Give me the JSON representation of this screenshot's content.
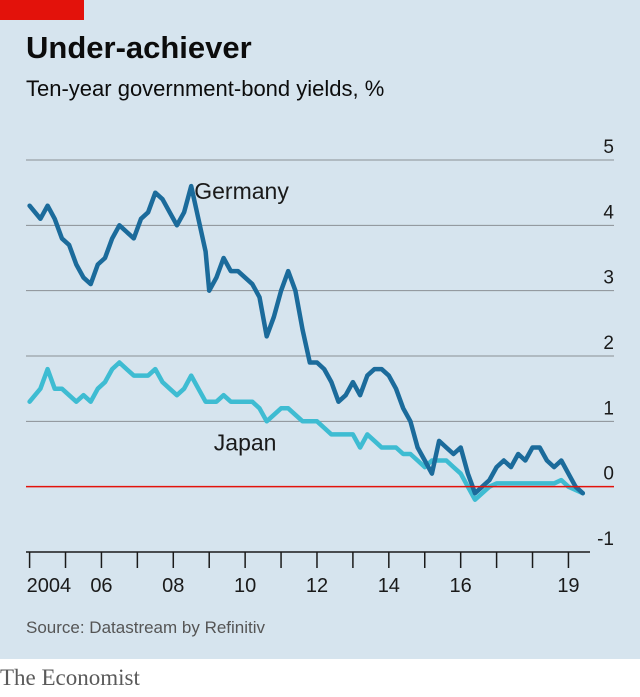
{
  "header": {
    "title": "Under-achiever",
    "subtitle": "Ten-year government-bond yields, %"
  },
  "chart_data": {
    "type": "line",
    "ylim": [
      -1,
      5
    ],
    "xlim": [
      2003.9,
      2019.6
    ],
    "y_ticks": [
      5,
      4,
      3,
      2,
      1,
      0,
      -1
    ],
    "x_ticks": [
      {
        "value": 2004,
        "label": "2004"
      },
      {
        "value": 2006,
        "label": "06"
      },
      {
        "value": 2008,
        "label": "08"
      },
      {
        "value": 2010,
        "label": "10"
      },
      {
        "value": 2012,
        "label": "12"
      },
      {
        "value": 2014,
        "label": "14"
      },
      {
        "value": 2016,
        "label": "16"
      },
      {
        "value": 2019,
        "label": "19"
      }
    ],
    "grid": true,
    "zero_line": true,
    "series": [
      {
        "name": "Germany",
        "color": "#1b6b9b",
        "points": [
          [
            2004.0,
            4.3
          ],
          [
            2004.3,
            4.1
          ],
          [
            2004.5,
            4.3
          ],
          [
            2004.7,
            4.1
          ],
          [
            2004.9,
            3.8
          ],
          [
            2005.1,
            3.7
          ],
          [
            2005.3,
            3.4
          ],
          [
            2005.5,
            3.2
          ],
          [
            2005.7,
            3.1
          ],
          [
            2005.9,
            3.4
          ],
          [
            2006.1,
            3.5
          ],
          [
            2006.3,
            3.8
          ],
          [
            2006.5,
            4.0
          ],
          [
            2006.7,
            3.9
          ],
          [
            2006.9,
            3.8
          ],
          [
            2007.1,
            4.1
          ],
          [
            2007.3,
            4.2
          ],
          [
            2007.5,
            4.5
          ],
          [
            2007.7,
            4.4
          ],
          [
            2007.9,
            4.2
          ],
          [
            2008.1,
            4.0
          ],
          [
            2008.3,
            4.2
          ],
          [
            2008.5,
            4.6
          ],
          [
            2008.7,
            4.1
          ],
          [
            2008.9,
            3.6
          ],
          [
            2009.0,
            3.0
          ],
          [
            2009.2,
            3.2
          ],
          [
            2009.4,
            3.5
          ],
          [
            2009.6,
            3.3
          ],
          [
            2009.8,
            3.3
          ],
          [
            2010.0,
            3.2
          ],
          [
            2010.2,
            3.1
          ],
          [
            2010.4,
            2.9
          ],
          [
            2010.6,
            2.3
          ],
          [
            2010.8,
            2.6
          ],
          [
            2011.0,
            3.0
          ],
          [
            2011.2,
            3.3
          ],
          [
            2011.4,
            3.0
          ],
          [
            2011.6,
            2.4
          ],
          [
            2011.8,
            1.9
          ],
          [
            2012.0,
            1.9
          ],
          [
            2012.2,
            1.8
          ],
          [
            2012.4,
            1.6
          ],
          [
            2012.6,
            1.3
          ],
          [
            2012.8,
            1.4
          ],
          [
            2013.0,
            1.6
          ],
          [
            2013.2,
            1.4
          ],
          [
            2013.4,
            1.7
          ],
          [
            2013.6,
            1.8
          ],
          [
            2013.8,
            1.8
          ],
          [
            2014.0,
            1.7
          ],
          [
            2014.2,
            1.5
          ],
          [
            2014.4,
            1.2
          ],
          [
            2014.6,
            1.0
          ],
          [
            2014.8,
            0.6
          ],
          [
            2015.0,
            0.4
          ],
          [
            2015.2,
            0.2
          ],
          [
            2015.4,
            0.7
          ],
          [
            2015.6,
            0.6
          ],
          [
            2015.8,
            0.5
          ],
          [
            2016.0,
            0.6
          ],
          [
            2016.2,
            0.2
          ],
          [
            2016.4,
            -0.1
          ],
          [
            2016.6,
            0.0
          ],
          [
            2016.8,
            0.1
          ],
          [
            2017.0,
            0.3
          ],
          [
            2017.2,
            0.4
          ],
          [
            2017.4,
            0.3
          ],
          [
            2017.6,
            0.5
          ],
          [
            2017.8,
            0.4
          ],
          [
            2018.0,
            0.6
          ],
          [
            2018.2,
            0.6
          ],
          [
            2018.4,
            0.4
          ],
          [
            2018.6,
            0.3
          ],
          [
            2018.8,
            0.4
          ],
          [
            2019.0,
            0.2
          ],
          [
            2019.2,
            -0.0
          ],
          [
            2019.4,
            -0.1
          ]
        ]
      },
      {
        "name": "Japan",
        "color": "#3ebcd2",
        "points": [
          [
            2004.0,
            1.3
          ],
          [
            2004.3,
            1.5
          ],
          [
            2004.5,
            1.8
          ],
          [
            2004.7,
            1.5
          ],
          [
            2004.9,
            1.5
          ],
          [
            2005.1,
            1.4
          ],
          [
            2005.3,
            1.3
          ],
          [
            2005.5,
            1.4
          ],
          [
            2005.7,
            1.3
          ],
          [
            2005.9,
            1.5
          ],
          [
            2006.1,
            1.6
          ],
          [
            2006.3,
            1.8
          ],
          [
            2006.5,
            1.9
          ],
          [
            2006.7,
            1.8
          ],
          [
            2006.9,
            1.7
          ],
          [
            2007.1,
            1.7
          ],
          [
            2007.3,
            1.7
          ],
          [
            2007.5,
            1.8
          ],
          [
            2007.7,
            1.6
          ],
          [
            2007.9,
            1.5
          ],
          [
            2008.1,
            1.4
          ],
          [
            2008.3,
            1.5
          ],
          [
            2008.5,
            1.7
          ],
          [
            2008.7,
            1.5
          ],
          [
            2008.9,
            1.3
          ],
          [
            2009.0,
            1.3
          ],
          [
            2009.2,
            1.3
          ],
          [
            2009.4,
            1.4
          ],
          [
            2009.6,
            1.3
          ],
          [
            2009.8,
            1.3
          ],
          [
            2010.0,
            1.3
          ],
          [
            2010.2,
            1.3
          ],
          [
            2010.4,
            1.2
          ],
          [
            2010.6,
            1.0
          ],
          [
            2010.8,
            1.1
          ],
          [
            2011.0,
            1.2
          ],
          [
            2011.2,
            1.2
          ],
          [
            2011.4,
            1.1
          ],
          [
            2011.6,
            1.0
          ],
          [
            2011.8,
            1.0
          ],
          [
            2012.0,
            1.0
          ],
          [
            2012.2,
            0.9
          ],
          [
            2012.4,
            0.8
          ],
          [
            2012.6,
            0.8
          ],
          [
            2012.8,
            0.8
          ],
          [
            2013.0,
            0.8
          ],
          [
            2013.2,
            0.6
          ],
          [
            2013.4,
            0.8
          ],
          [
            2013.6,
            0.7
          ],
          [
            2013.8,
            0.6
          ],
          [
            2014.0,
            0.6
          ],
          [
            2014.2,
            0.6
          ],
          [
            2014.4,
            0.5
          ],
          [
            2014.6,
            0.5
          ],
          [
            2014.8,
            0.4
          ],
          [
            2015.0,
            0.3
          ],
          [
            2015.2,
            0.4
          ],
          [
            2015.4,
            0.4
          ],
          [
            2015.6,
            0.4
          ],
          [
            2015.8,
            0.3
          ],
          [
            2016.0,
            0.2
          ],
          [
            2016.2,
            0.0
          ],
          [
            2016.4,
            -0.2
          ],
          [
            2016.6,
            -0.1
          ],
          [
            2016.8,
            0.0
          ],
          [
            2017.0,
            0.05
          ],
          [
            2017.2,
            0.05
          ],
          [
            2017.4,
            0.05
          ],
          [
            2017.6,
            0.05
          ],
          [
            2017.8,
            0.05
          ],
          [
            2018.0,
            0.05
          ],
          [
            2018.2,
            0.05
          ],
          [
            2018.4,
            0.05
          ],
          [
            2018.6,
            0.05
          ],
          [
            2018.8,
            0.1
          ],
          [
            2019.0,
            0.0
          ],
          [
            2019.2,
            -0.05
          ],
          [
            2019.4,
            -0.1
          ]
        ]
      }
    ],
    "labels": [
      {
        "text": "Germany",
        "x": 2009.9,
        "y": 4.4
      },
      {
        "text": "Japan",
        "x": 2010.0,
        "y": 0.55
      }
    ]
  },
  "source": "Source: Datastream by Refinitiv",
  "footer": "The Economist"
}
